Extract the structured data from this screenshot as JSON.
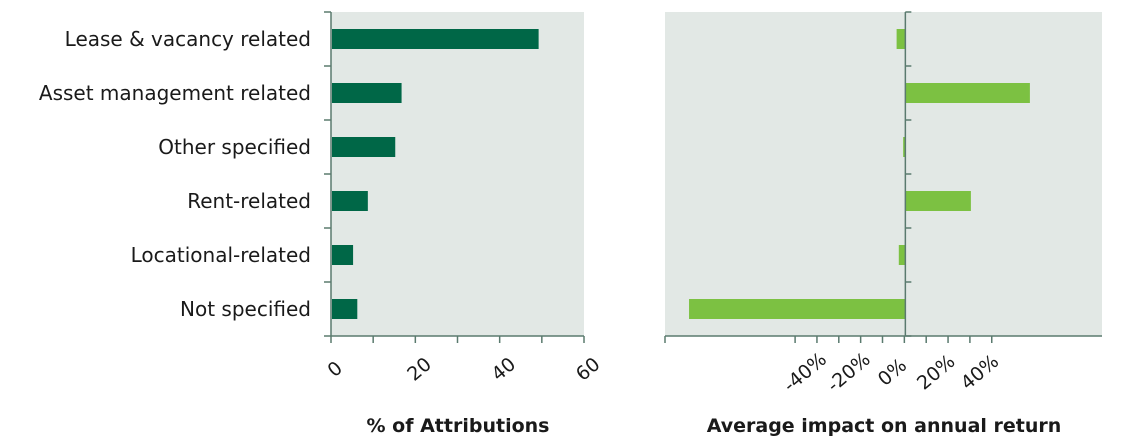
{
  "colors": {
    "panel_bg": "#e2e8e5",
    "left_bar": "#006747",
    "right_bar": "#7cc142",
    "axis": "#5a7a6e"
  },
  "chart_data": [
    {
      "type": "bar",
      "orientation": "horizontal",
      "categories": [
        "Lease & vacancy related",
        "Asset management related",
        "Other specified",
        "Rent-related",
        "Locational-related",
        "Not specified"
      ],
      "values": [
        49,
        16.5,
        15,
        8.5,
        5,
        6
      ],
      "xlabel": "% of Attributions",
      "xlim": [
        0,
        60
      ],
      "xticks": [
        0,
        20,
        40,
        60
      ],
      "xtick_labels": [
        "0",
        "20",
        "40",
        "60"
      ],
      "grid": false
    },
    {
      "type": "bar",
      "orientation": "horizontal",
      "categories": [
        "Lease & vacancy related",
        "Asset management related",
        "Other specified",
        "Rent-related",
        "Locational-related",
        "Not specified"
      ],
      "values": [
        -4,
        57,
        -1,
        30,
        -3,
        -99
      ],
      "xlabel": "Average impact on annual return",
      "xlim": [
        -110,
        90
      ],
      "xticks": [
        -40,
        -20,
        0,
        20,
        40
      ],
      "xtick_labels": [
        "-40%",
        "-20%",
        "0%",
        "20%",
        "40%"
      ],
      "grid": false
    }
  ]
}
